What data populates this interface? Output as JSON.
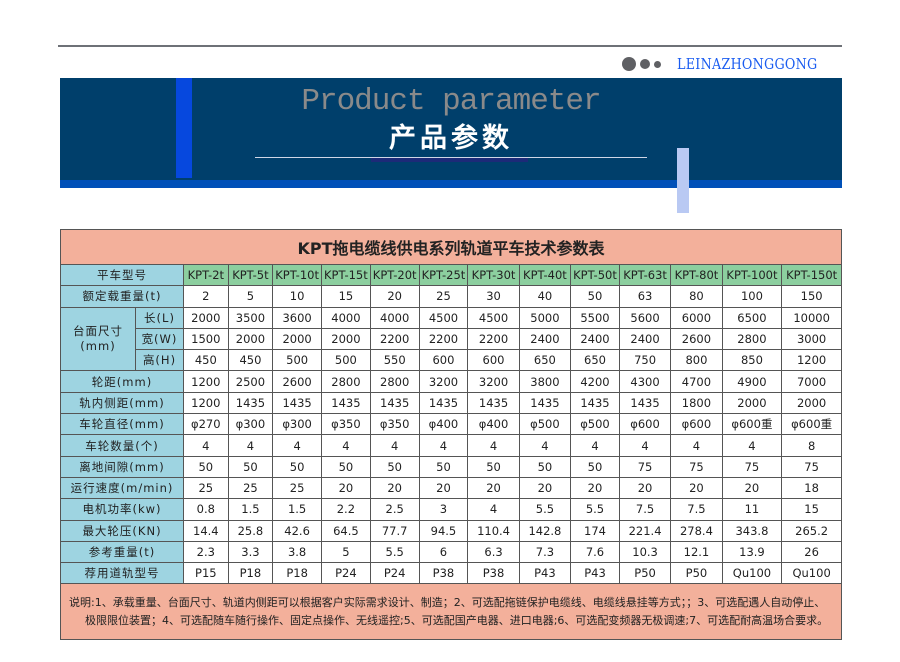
{
  "logo": {
    "text": "LEINAZHONGGONG"
  },
  "banner": {
    "title_en": "Product parameter",
    "title_cn": "产品参数"
  },
  "table": {
    "title": "KPT拖电缆线供电系列轨道平车技术参数表",
    "model_label": "平车型号",
    "models": [
      "KPT-2t",
      "KPT-5t",
      "KPT-10t",
      "KPT-15t",
      "KPT-20t",
      "KPT-25t",
      "KPT-30t",
      "KPT-40t",
      "KPT-50t",
      "KPT-63t",
      "KPT-80t",
      "KPT-100t",
      "KPT-150t"
    ],
    "dim_label": "台面尺寸\n(mm)",
    "rows": [
      {
        "label": "额定载重量(t)",
        "values": [
          "2",
          "5",
          "10",
          "15",
          "20",
          "25",
          "30",
          "40",
          "50",
          "63",
          "80",
          "100",
          "150"
        ]
      },
      {
        "label": "长(L)",
        "values": [
          "2000",
          "3500",
          "3600",
          "4000",
          "4000",
          "4500",
          "4500",
          "5000",
          "5500",
          "5600",
          "6000",
          "6500",
          "10000"
        ]
      },
      {
        "label": "宽(W)",
        "values": [
          "1500",
          "2000",
          "2000",
          "2000",
          "2200",
          "2200",
          "2200",
          "2400",
          "2400",
          "2400",
          "2600",
          "2800",
          "3000"
        ]
      },
      {
        "label": "高(H)",
        "values": [
          "450",
          "450",
          "500",
          "500",
          "550",
          "600",
          "600",
          "650",
          "650",
          "750",
          "800",
          "850",
          "1200"
        ]
      },
      {
        "label": "轮距(mm)",
        "values": [
          "1200",
          "2500",
          "2600",
          "2800",
          "2800",
          "3200",
          "3200",
          "3800",
          "4200",
          "4300",
          "4700",
          "4900",
          "7000"
        ]
      },
      {
        "label": "轨内侧距(mm)",
        "values": [
          "1200",
          "1435",
          "1435",
          "1435",
          "1435",
          "1435",
          "1435",
          "1435",
          "1435",
          "1435",
          "1800",
          "2000",
          "2000"
        ]
      },
      {
        "label": "车轮直径(mm)",
        "values": [
          "φ270",
          "φ300",
          "φ300",
          "φ350",
          "φ350",
          "φ400",
          "φ400",
          "φ500",
          "φ500",
          "φ600",
          "φ600",
          "φ600重",
          "φ600重"
        ]
      },
      {
        "label": "车轮数量(个)",
        "values": [
          "4",
          "4",
          "4",
          "4",
          "4",
          "4",
          "4",
          "4",
          "4",
          "4",
          "4",
          "4",
          "8"
        ]
      },
      {
        "label": "离地间隙(mm)",
        "values": [
          "50",
          "50",
          "50",
          "50",
          "50",
          "50",
          "50",
          "50",
          "50",
          "75",
          "75",
          "75",
          "75"
        ]
      },
      {
        "label": "运行速度(m/min)",
        "values": [
          "25",
          "25",
          "25",
          "20",
          "20",
          "20",
          "20",
          "20",
          "20",
          "20",
          "20",
          "20",
          "18"
        ]
      },
      {
        "label": "电机功率(kw)",
        "values": [
          "0.8",
          "1.5",
          "1.5",
          "2.2",
          "2.5",
          "3",
          "4",
          "5.5",
          "5.5",
          "7.5",
          "7.5",
          "11",
          "15"
        ]
      },
      {
        "label": "最大轮压(KN)",
        "values": [
          "14.4",
          "25.8",
          "42.6",
          "64.5",
          "77.7",
          "94.5",
          "110.4",
          "142.8",
          "174",
          "221.4",
          "278.4",
          "343.8",
          "265.2"
        ]
      },
      {
        "label": "参考重量(t)",
        "values": [
          "2.3",
          "3.3",
          "3.8",
          "5",
          "5.5",
          "6",
          "6.3",
          "7.3",
          "7.6",
          "10.3",
          "12.1",
          "13.9",
          "26"
        ]
      },
      {
        "label": "荐用道轨型号",
        "values": [
          "P15",
          "P18",
          "P18",
          "P24",
          "P24",
          "P38",
          "P38",
          "P43",
          "P43",
          "P50",
          "P50",
          "Qu100",
          "Qu100"
        ]
      }
    ],
    "note": "说明:1、承载重量、台面尺寸、轨道内侧距可以根据客户实际需求设计、制造；2、可选配拖链保护电缆线、电缆线悬挂等方式；；3、可选配遇人自动停止、极限限位装置；4、可选配随车随行操作、固定点操作、无线遥控;5、可选配国产电器、进口电器;6、可选配变频器无极调速;7、可选配耐高温场合要求。"
  }
}
